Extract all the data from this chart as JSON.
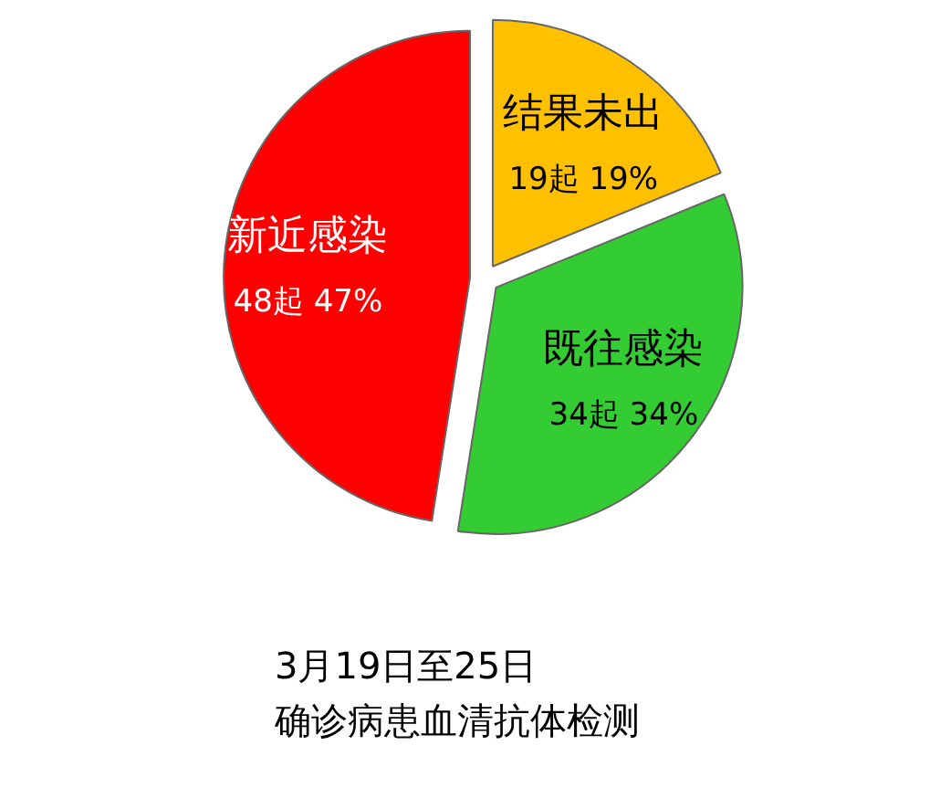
{
  "chart_data": {
    "type": "pie",
    "title": "3月19日至25日",
    "subtitle": "确诊病患血清抗体检测",
    "categories": [
      "结果未出",
      "既往感染",
      "新近感染"
    ],
    "values": [
      19,
      34,
      48
    ],
    "value_labels": [
      "19起 19%",
      "34起 34%",
      "48起 47%"
    ],
    "colors": [
      "#ffc000",
      "#33cc33",
      "#ff0000"
    ]
  }
}
